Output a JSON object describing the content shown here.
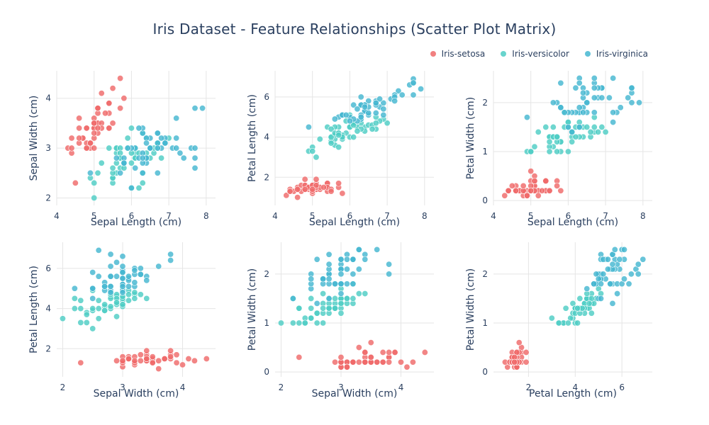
{
  "title": "Iris Dataset - Feature Relationships (Scatter Plot Matrix)",
  "colors": {
    "Iris-setosa": "#EF6A6A",
    "Iris-versicolor": "#4ECDC4",
    "Iris-virginica": "#45B7D1",
    "grid": "#e5e5e5",
    "text": "#2a3f5f"
  },
  "legend": [
    "Iris-setosa",
    "Iris-versicolor",
    "Iris-virginica"
  ],
  "chart_data": [
    {
      "type": "scatter",
      "xlabel": "Sepal Length (cm)",
      "ylabel": "Sepal Width (cm)",
      "xkey": "sl",
      "ykey": "sw",
      "xlim": [
        4,
        8.25
      ],
      "ylim": [
        1.85,
        4.55
      ],
      "xticks": [
        4,
        5,
        6,
        7,
        8
      ],
      "yticks": [
        2,
        3,
        4
      ]
    },
    {
      "type": "scatter",
      "xlabel": "Sepal Length (cm)",
      "ylabel": "Petal Length (cm)",
      "xkey": "sl",
      "ykey": "pl",
      "xlim": [
        4,
        8.25
      ],
      "ylim": [
        0.6,
        7.3
      ],
      "xticks": [
        4,
        5,
        6,
        7,
        8
      ],
      "yticks": [
        2,
        4,
        6
      ]
    },
    {
      "type": "scatter",
      "xlabel": "Sepal Length (cm)",
      "ylabel": "Petal Width (cm)",
      "xkey": "sl",
      "ykey": "pw",
      "xlim": [
        4,
        8.25
      ],
      "ylim": [
        -0.1,
        2.65
      ],
      "xticks": [
        4,
        5,
        6,
        7,
        8
      ],
      "yticks": [
        0,
        1,
        2
      ]
    },
    {
      "type": "scatter",
      "xlabel": "Sepal Width (cm)",
      "ylabel": "Petal Length (cm)",
      "xkey": "sw",
      "ykey": "pl",
      "xlim": [
        1.9,
        4.55
      ],
      "ylim": [
        0.6,
        7.3
      ],
      "xticks": [
        2,
        3,
        4
      ],
      "yticks": [
        2,
        4,
        6
      ]
    },
    {
      "type": "scatter",
      "xlabel": "Sepal Width (cm)",
      "ylabel": "Petal Width (cm)",
      "xkey": "sw",
      "ykey": "pw",
      "xlim": [
        1.9,
        4.55
      ],
      "ylim": [
        -0.1,
        2.65
      ],
      "xticks": [
        2,
        3,
        4
      ],
      "yticks": [
        0,
        1,
        2
      ]
    },
    {
      "type": "scatter",
      "xlabel": "Petal Length (cm)",
      "ylabel": "Petal Width (cm)",
      "xkey": "pl",
      "ykey": "pw",
      "xlim": [
        0.5,
        7.3
      ],
      "ylim": [
        -0.1,
        2.65
      ],
      "xticks": [
        2,
        4,
        6
      ],
      "yticks": [
        0,
        1,
        2
      ]
    }
  ],
  "series": [
    {
      "name": "Iris-setosa",
      "columns": [
        "sl",
        "sw",
        "pl",
        "pw"
      ],
      "points": [
        [
          5.1,
          3.5,
          1.4,
          0.2
        ],
        [
          4.9,
          3.0,
          1.4,
          0.2
        ],
        [
          4.7,
          3.2,
          1.3,
          0.2
        ],
        [
          4.6,
          3.1,
          1.5,
          0.2
        ],
        [
          5.0,
          3.6,
          1.4,
          0.2
        ],
        [
          5.4,
          3.9,
          1.7,
          0.4
        ],
        [
          4.6,
          3.4,
          1.4,
          0.3
        ],
        [
          5.0,
          3.4,
          1.5,
          0.2
        ],
        [
          4.4,
          2.9,
          1.4,
          0.2
        ],
        [
          4.9,
          3.1,
          1.5,
          0.1
        ],
        [
          5.4,
          3.7,
          1.5,
          0.2
        ],
        [
          4.8,
          3.4,
          1.6,
          0.2
        ],
        [
          4.8,
          3.0,
          1.4,
          0.1
        ],
        [
          4.3,
          3.0,
          1.1,
          0.1
        ],
        [
          5.8,
          4.0,
          1.2,
          0.2
        ],
        [
          5.7,
          4.4,
          1.5,
          0.4
        ],
        [
          5.4,
          3.9,
          1.3,
          0.4
        ],
        [
          5.1,
          3.5,
          1.4,
          0.3
        ],
        [
          5.7,
          3.8,
          1.7,
          0.3
        ],
        [
          5.1,
          3.8,
          1.5,
          0.3
        ],
        [
          5.4,
          3.4,
          1.7,
          0.2
        ],
        [
          5.1,
          3.7,
          1.5,
          0.4
        ],
        [
          4.6,
          3.6,
          1.0,
          0.2
        ],
        [
          5.1,
          3.3,
          1.7,
          0.5
        ],
        [
          4.8,
          3.4,
          1.9,
          0.2
        ],
        [
          5.0,
          3.0,
          1.6,
          0.2
        ],
        [
          5.0,
          3.4,
          1.6,
          0.4
        ],
        [
          5.2,
          3.5,
          1.5,
          0.2
        ],
        [
          5.2,
          3.4,
          1.4,
          0.2
        ],
        [
          4.7,
          3.2,
          1.6,
          0.2
        ],
        [
          4.8,
          3.1,
          1.6,
          0.2
        ],
        [
          5.4,
          3.4,
          1.5,
          0.4
        ],
        [
          5.2,
          4.1,
          1.5,
          0.1
        ],
        [
          5.5,
          4.2,
          1.4,
          0.2
        ],
        [
          4.9,
          3.1,
          1.5,
          0.1
        ],
        [
          5.0,
          3.2,
          1.2,
          0.2
        ],
        [
          5.5,
          3.5,
          1.3,
          0.2
        ],
        [
          4.9,
          3.1,
          1.5,
          0.1
        ],
        [
          4.4,
          3.0,
          1.3,
          0.2
        ],
        [
          5.1,
          3.4,
          1.5,
          0.2
        ],
        [
          5.0,
          3.5,
          1.3,
          0.3
        ],
        [
          4.5,
          2.3,
          1.3,
          0.3
        ],
        [
          4.4,
          3.2,
          1.3,
          0.2
        ],
        [
          5.0,
          3.5,
          1.6,
          0.6
        ],
        [
          5.1,
          3.8,
          1.9,
          0.4
        ],
        [
          4.8,
          3.0,
          1.4,
          0.3
        ],
        [
          5.1,
          3.8,
          1.6,
          0.2
        ],
        [
          4.6,
          3.2,
          1.4,
          0.2
        ],
        [
          5.3,
          3.7,
          1.5,
          0.2
        ],
        [
          5.0,
          3.3,
          1.4,
          0.2
        ]
      ]
    },
    {
      "name": "Iris-versicolor",
      "columns": [
        "sl",
        "sw",
        "pl",
        "pw"
      ],
      "points": [
        [
          7.0,
          3.2,
          4.7,
          1.4
        ],
        [
          6.4,
          3.2,
          4.5,
          1.5
        ],
        [
          6.9,
          3.1,
          4.9,
          1.5
        ],
        [
          5.5,
          2.3,
          4.0,
          1.3
        ],
        [
          6.5,
          2.8,
          4.6,
          1.5
        ],
        [
          5.7,
          2.8,
          4.5,
          1.3
        ],
        [
          6.3,
          3.3,
          4.7,
          1.6
        ],
        [
          4.9,
          2.4,
          3.3,
          1.0
        ],
        [
          6.6,
          2.9,
          4.6,
          1.3
        ],
        [
          5.2,
          2.7,
          3.9,
          1.4
        ],
        [
          5.0,
          2.0,
          3.5,
          1.0
        ],
        [
          5.9,
          3.0,
          4.2,
          1.5
        ],
        [
          6.0,
          2.2,
          4.0,
          1.0
        ],
        [
          6.1,
          2.9,
          4.7,
          1.4
        ],
        [
          5.6,
          2.9,
          3.6,
          1.3
        ],
        [
          6.7,
          3.1,
          4.4,
          1.4
        ],
        [
          5.6,
          3.0,
          4.5,
          1.5
        ],
        [
          5.8,
          2.7,
          4.1,
          1.0
        ],
        [
          6.2,
          2.2,
          4.5,
          1.5
        ],
        [
          5.6,
          2.5,
          3.9,
          1.1
        ],
        [
          5.9,
          3.2,
          4.8,
          1.8
        ],
        [
          6.1,
          2.8,
          4.0,
          1.3
        ],
        [
          6.3,
          2.5,
          4.9,
          1.5
        ],
        [
          6.1,
          2.8,
          4.7,
          1.2
        ],
        [
          6.4,
          2.9,
          4.3,
          1.3
        ],
        [
          6.6,
          3.0,
          4.4,
          1.4
        ],
        [
          6.8,
          2.8,
          4.8,
          1.4
        ],
        [
          6.7,
          3.0,
          5.0,
          1.7
        ],
        [
          6.0,
          2.9,
          4.5,
          1.5
        ],
        [
          5.7,
          2.6,
          3.5,
          1.0
        ],
        [
          5.5,
          2.4,
          3.8,
          1.1
        ],
        [
          5.5,
          2.4,
          3.7,
          1.0
        ],
        [
          5.8,
          2.7,
          3.9,
          1.2
        ],
        [
          6.0,
          2.7,
          5.1,
          1.6
        ],
        [
          5.4,
          3.0,
          4.5,
          1.5
        ],
        [
          6.0,
          3.4,
          4.5,
          1.6
        ],
        [
          6.7,
          3.1,
          4.7,
          1.5
        ],
        [
          6.3,
          2.3,
          4.4,
          1.3
        ],
        [
          5.6,
          3.0,
          4.1,
          1.3
        ],
        [
          5.5,
          2.5,
          4.0,
          1.3
        ],
        [
          5.5,
          2.6,
          4.4,
          1.2
        ],
        [
          6.1,
          3.0,
          4.6,
          1.4
        ],
        [
          5.8,
          2.6,
          4.0,
          1.2
        ],
        [
          5.0,
          2.3,
          3.3,
          1.0
        ],
        [
          5.6,
          2.7,
          4.2,
          1.3
        ],
        [
          5.7,
          3.0,
          4.2,
          1.2
        ],
        [
          5.7,
          2.9,
          4.2,
          1.3
        ],
        [
          6.2,
          2.9,
          4.3,
          1.3
        ],
        [
          5.1,
          2.5,
          3.0,
          1.1
        ],
        [
          5.7,
          2.8,
          4.1,
          1.3
        ]
      ]
    },
    {
      "name": "Iris-virginica",
      "columns": [
        "sl",
        "sw",
        "pl",
        "pw"
      ],
      "points": [
        [
          6.3,
          3.3,
          6.0,
          2.5
        ],
        [
          5.8,
          2.7,
          5.1,
          1.9
        ],
        [
          7.1,
          3.0,
          5.9,
          2.1
        ],
        [
          6.3,
          2.9,
          5.6,
          1.8
        ],
        [
          6.5,
          3.0,
          5.8,
          2.2
        ],
        [
          7.6,
          3.0,
          6.6,
          2.1
        ],
        [
          4.9,
          2.5,
          4.5,
          1.7
        ],
        [
          7.3,
          2.9,
          6.3,
          1.8
        ],
        [
          6.7,
          2.5,
          5.8,
          1.8
        ],
        [
          7.2,
          3.6,
          6.1,
          2.5
        ],
        [
          6.5,
          3.2,
          5.1,
          2.0
        ],
        [
          6.4,
          2.7,
          5.3,
          1.9
        ],
        [
          6.8,
          3.0,
          5.5,
          2.1
        ],
        [
          5.7,
          2.5,
          5.0,
          2.0
        ],
        [
          5.8,
          2.8,
          5.1,
          2.4
        ],
        [
          6.4,
          3.2,
          5.3,
          2.3
        ],
        [
          6.5,
          3.0,
          5.5,
          1.8
        ],
        [
          7.7,
          3.8,
          6.7,
          2.2
        ],
        [
          7.7,
          2.6,
          6.9,
          2.3
        ],
        [
          6.0,
          2.2,
          5.0,
          1.5
        ],
        [
          6.9,
          3.2,
          5.7,
          2.3
        ],
        [
          5.6,
          2.8,
          4.9,
          2.0
        ],
        [
          7.7,
          2.8,
          6.7,
          2.0
        ],
        [
          6.3,
          2.7,
          4.9,
          1.8
        ],
        [
          6.7,
          3.3,
          5.7,
          2.1
        ],
        [
          7.2,
          3.2,
          6.0,
          1.8
        ],
        [
          6.2,
          2.8,
          4.8,
          1.8
        ],
        [
          6.1,
          3.0,
          4.9,
          1.8
        ],
        [
          6.4,
          2.8,
          5.6,
          2.1
        ],
        [
          7.2,
          3.0,
          5.8,
          1.6
        ],
        [
          7.4,
          2.8,
          6.1,
          1.9
        ],
        [
          7.9,
          3.8,
          6.4,
          2.0
        ],
        [
          6.4,
          2.8,
          5.6,
          2.2
        ],
        [
          6.3,
          2.8,
          5.1,
          1.5
        ],
        [
          6.1,
          2.6,
          5.6,
          1.4
        ],
        [
          7.7,
          3.0,
          6.1,
          2.3
        ],
        [
          6.3,
          3.4,
          5.6,
          2.4
        ],
        [
          6.4,
          3.1,
          5.5,
          1.8
        ],
        [
          6.0,
          3.0,
          4.8,
          1.8
        ],
        [
          6.9,
          3.1,
          5.4,
          2.1
        ],
        [
          6.7,
          3.1,
          5.6,
          2.4
        ],
        [
          6.9,
          3.1,
          5.1,
          2.3
        ],
        [
          5.8,
          2.7,
          5.1,
          1.9
        ],
        [
          6.8,
          3.2,
          5.9,
          2.3
        ],
        [
          6.7,
          3.3,
          5.7,
          2.5
        ],
        [
          6.7,
          3.0,
          5.2,
          2.3
        ],
        [
          6.3,
          2.5,
          5.0,
          1.9
        ],
        [
          6.5,
          3.0,
          5.2,
          2.0
        ],
        [
          6.2,
          3.4,
          5.4,
          2.3
        ],
        [
          5.9,
          3.0,
          5.1,
          1.8
        ]
      ]
    }
  ]
}
